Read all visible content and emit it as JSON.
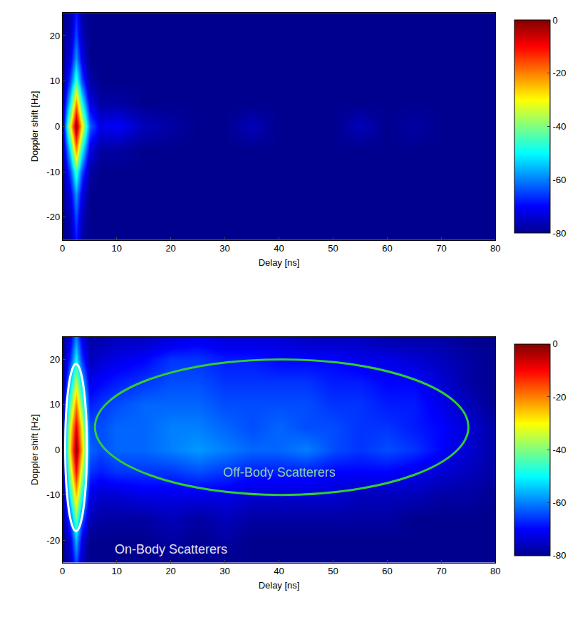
{
  "chart_data": [
    {
      "type": "heatmap",
      "x_label": "Delay [ns]",
      "y_label": "Doppler shift [Hz]",
      "xlim": [
        0,
        80
      ],
      "ylim": [
        -25,
        25
      ],
      "xticks": [
        0,
        10,
        20,
        30,
        40,
        50,
        60,
        70,
        80
      ],
      "yticks": [
        -20,
        -10,
        0,
        10,
        20
      ],
      "zlim": [
        -80,
        0
      ],
      "zticks": [
        0,
        -20,
        -40,
        -60,
        -80
      ],
      "x": [
        0,
        1.5,
        2.5,
        3.5,
        5,
        7,
        10,
        15,
        20,
        25,
        30,
        35,
        40,
        45,
        50,
        55,
        60,
        65,
        70,
        75,
        80
      ],
      "y": [
        -25,
        -20,
        -15,
        -10,
        -5,
        0,
        5,
        10,
        15,
        20,
        25
      ],
      "z": [
        [
          -80,
          -78,
          -68,
          -78,
          -80,
          -80,
          -80,
          -80,
          -80,
          -80,
          -80,
          -80,
          -80,
          -80,
          -80,
          -80,
          -80,
          -80,
          -80,
          -80,
          -80
        ],
        [
          -80,
          -76,
          -64,
          -76,
          -80,
          -80,
          -80,
          -80,
          -80,
          -80,
          -80,
          -80,
          -80,
          -80,
          -80,
          -80,
          -80,
          -80,
          -80,
          -80,
          -80
        ],
        [
          -80,
          -72,
          -58,
          -72,
          -80,
          -80,
          -80,
          -80,
          -80,
          -80,
          -80,
          -80,
          -80,
          -80,
          -80,
          -80,
          -80,
          -80,
          -80,
          -80,
          -80
        ],
        [
          -80,
          -64,
          -45,
          -64,
          -78,
          -80,
          -80,
          -80,
          -80,
          -80,
          -80,
          -80,
          -80,
          -80,
          -80,
          -80,
          -80,
          -80,
          -80,
          -80,
          -80
        ],
        [
          -78,
          -50,
          -20,
          -48,
          -72,
          -78,
          -78,
          -80,
          -80,
          -80,
          -80,
          -80,
          -80,
          -80,
          -80,
          -80,
          -80,
          -80,
          -80,
          -80,
          -80
        ],
        [
          -76,
          -30,
          0,
          -28,
          -62,
          -72,
          -70,
          -76,
          -78,
          -80,
          -80,
          -76,
          -80,
          -80,
          -80,
          -76,
          -80,
          -78,
          -80,
          -80,
          -80
        ],
        [
          -78,
          -50,
          -20,
          -48,
          -72,
          -78,
          -78,
          -80,
          -80,
          -80,
          -80,
          -80,
          -80,
          -80,
          -80,
          -80,
          -80,
          -80,
          -80,
          -80,
          -80
        ],
        [
          -80,
          -64,
          -45,
          -64,
          -78,
          -80,
          -80,
          -80,
          -80,
          -80,
          -80,
          -80,
          -80,
          -80,
          -80,
          -80,
          -80,
          -80,
          -80,
          -80,
          -80
        ],
        [
          -80,
          -72,
          -58,
          -72,
          -80,
          -80,
          -80,
          -80,
          -80,
          -80,
          -80,
          -80,
          -80,
          -80,
          -80,
          -80,
          -80,
          -80,
          -80,
          -80,
          -80
        ],
        [
          -80,
          -76,
          -64,
          -76,
          -80,
          -80,
          -80,
          -80,
          -80,
          -80,
          -80,
          -80,
          -80,
          -80,
          -80,
          -80,
          -80,
          -80,
          -80,
          -80,
          -80
        ],
        [
          -80,
          -78,
          -68,
          -78,
          -80,
          -80,
          -80,
          -80,
          -80,
          -80,
          -80,
          -80,
          -80,
          -80,
          -80,
          -80,
          -80,
          -80,
          -80,
          -80,
          -80
        ]
      ]
    },
    {
      "type": "heatmap",
      "x_label": "Delay [ns]",
      "y_label": "Doppler shift [Hz]",
      "xlim": [
        0,
        80
      ],
      "ylim": [
        -25,
        25
      ],
      "xticks": [
        0,
        10,
        20,
        30,
        40,
        50,
        60,
        70,
        80
      ],
      "yticks": [
        -20,
        -10,
        0,
        10,
        20
      ],
      "zlim": [
        -80,
        0
      ],
      "zticks": [
        0,
        -20,
        -40,
        -60,
        -80
      ],
      "x": [
        0,
        1.5,
        2.5,
        3.5,
        5,
        7,
        10,
        15,
        20,
        25,
        30,
        35,
        40,
        45,
        50,
        55,
        60,
        65,
        70,
        75,
        80
      ],
      "y": [
        -25,
        -20,
        -15,
        -10,
        -5,
        0,
        5,
        10,
        15,
        20,
        25
      ],
      "z": [
        [
          -80,
          -76,
          -64,
          -76,
          -80,
          -80,
          -80,
          -80,
          -80,
          -80,
          -80,
          -80,
          -80,
          -80,
          -80,
          -80,
          -80,
          -80,
          -80,
          -80,
          -80
        ],
        [
          -80,
          -72,
          -55,
          -72,
          -80,
          -80,
          -80,
          -80,
          -78,
          -80,
          -78,
          -80,
          -80,
          -80,
          -80,
          -80,
          -80,
          -80,
          -80,
          -80,
          -80
        ],
        [
          -80,
          -62,
          -40,
          -62,
          -76,
          -78,
          -78,
          -78,
          -76,
          -78,
          -76,
          -78,
          -78,
          -78,
          -78,
          -78,
          -78,
          -80,
          -80,
          -80,
          -80
        ],
        [
          -80,
          -48,
          -25,
          -48,
          -72,
          -74,
          -74,
          -72,
          -72,
          -72,
          -72,
          -74,
          -74,
          -74,
          -74,
          -76,
          -76,
          -76,
          -78,
          -78,
          -80
        ],
        [
          -78,
          -35,
          -10,
          -35,
          -66,
          -68,
          -66,
          -66,
          -66,
          -64,
          -66,
          -68,
          -68,
          -68,
          -70,
          -70,
          -70,
          -72,
          -74,
          -76,
          -78
        ],
        [
          -76,
          -25,
          0,
          -25,
          -62,
          -64,
          -62,
          -62,
          -60,
          -58,
          -60,
          -62,
          -62,
          -60,
          -64,
          -66,
          -64,
          -66,
          -70,
          -74,
          -78
        ],
        [
          -76,
          -30,
          -8,
          -30,
          -64,
          -64,
          -62,
          -62,
          -60,
          -60,
          -62,
          -64,
          -62,
          -64,
          -64,
          -66,
          -66,
          -68,
          -70,
          -74,
          -78
        ],
        [
          -78,
          -42,
          -20,
          -42,
          -68,
          -66,
          -64,
          -62,
          -62,
          -62,
          -64,
          -64,
          -64,
          -64,
          -66,
          -66,
          -68,
          -68,
          -72,
          -76,
          -80
        ],
        [
          -80,
          -55,
          -35,
          -55,
          -72,
          -70,
          -68,
          -66,
          -64,
          -64,
          -66,
          -66,
          -66,
          -66,
          -68,
          -68,
          -70,
          -70,
          -74,
          -78,
          -80
        ],
        [
          -80,
          -66,
          -50,
          -66,
          -76,
          -74,
          -72,
          -70,
          -66,
          -66,
          -68,
          -68,
          -70,
          -70,
          -70,
          -72,
          -72,
          -74,
          -76,
          -78,
          -80
        ],
        [
          -80,
          -72,
          -60,
          -72,
          -78,
          -78,
          -76,
          -76,
          -74,
          -72,
          -74,
          -74,
          -74,
          -76,
          -76,
          -76,
          -78,
          -78,
          -78,
          -80,
          -80
        ]
      ],
      "shapes": [
        {
          "type": "ellipse",
          "x": [
            6,
            75
          ],
          "y": [
            -10,
            20
          ],
          "color": "#33cc33"
        },
        {
          "type": "ellipse",
          "x": [
            0.5,
            4.5
          ],
          "y": [
            -18,
            19
          ],
          "color": "#ffffff"
        }
      ],
      "annotations": [
        {
          "text": "Off-Body Scatterers",
          "x": 40,
          "y": -5,
          "color": "#8fd0a8"
        },
        {
          "text": "On-Body Scatterers",
          "x": 20,
          "y": -22,
          "color": "#e0e0f0"
        }
      ]
    }
  ]
}
